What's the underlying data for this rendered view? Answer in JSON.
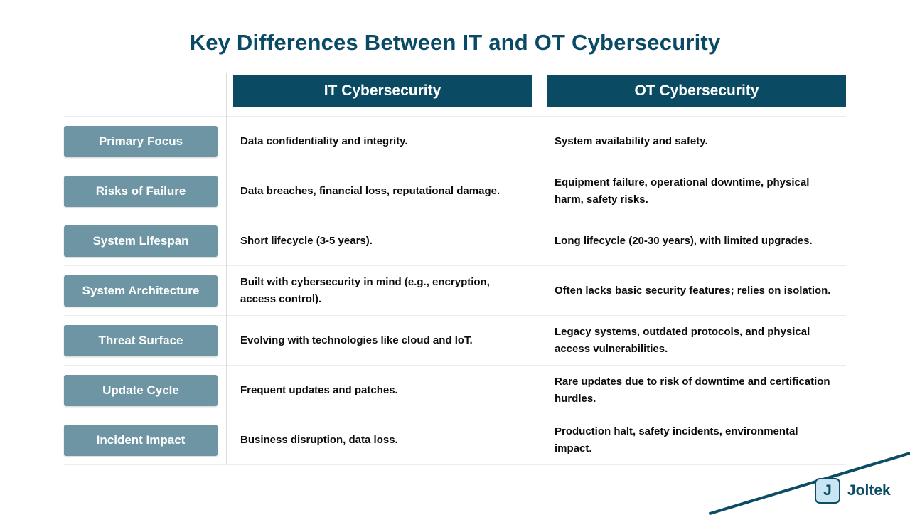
{
  "page": {
    "title": "Key Differences Between IT and OT Cybersecurity"
  },
  "table": {
    "columns": [
      {
        "label": "IT Cybersecurity"
      },
      {
        "label": "OT Cybersecurity"
      }
    ],
    "rows": [
      {
        "label": "Primary Focus",
        "it": "Data confidentiality and integrity.",
        "ot": "System availability and safety."
      },
      {
        "label": "Risks of Failure",
        "it": "Data breaches, financial loss, reputational damage.",
        "ot": "Equipment failure, operational downtime, physical harm, safety risks."
      },
      {
        "label": "System Lifespan",
        "it": "Short lifecycle (3-5 years).",
        "ot": "Long lifecycle (20-30 years), with limited upgrades."
      },
      {
        "label": "System Architecture",
        "it": "Built with cybersecurity in mind (e.g., encryption, access control).",
        "ot": "Often lacks basic security features; relies on isolation."
      },
      {
        "label": "Threat Surface",
        "it": "Evolving with technologies like cloud and IoT.",
        "ot": "Legacy systems, outdated protocols, and physical access vulnerabilities."
      },
      {
        "label": "Update Cycle",
        "it": "Frequent updates and patches.",
        "ot": "Rare updates due to risk of downtime and certification hurdles."
      },
      {
        "label": "Incident Impact",
        "it": "Business disruption, data loss.",
        "ot": "Production halt, safety incidents, environmental impact."
      }
    ]
  },
  "branding": {
    "logo_letter": "J",
    "brand_name": "Joltek"
  },
  "colors": {
    "title_text": "#0b4a64",
    "header_bg": "#0a4a63",
    "row_label_bg": "#6e95a4",
    "accent_line": "#0d4c65",
    "divider": "#ececec"
  }
}
